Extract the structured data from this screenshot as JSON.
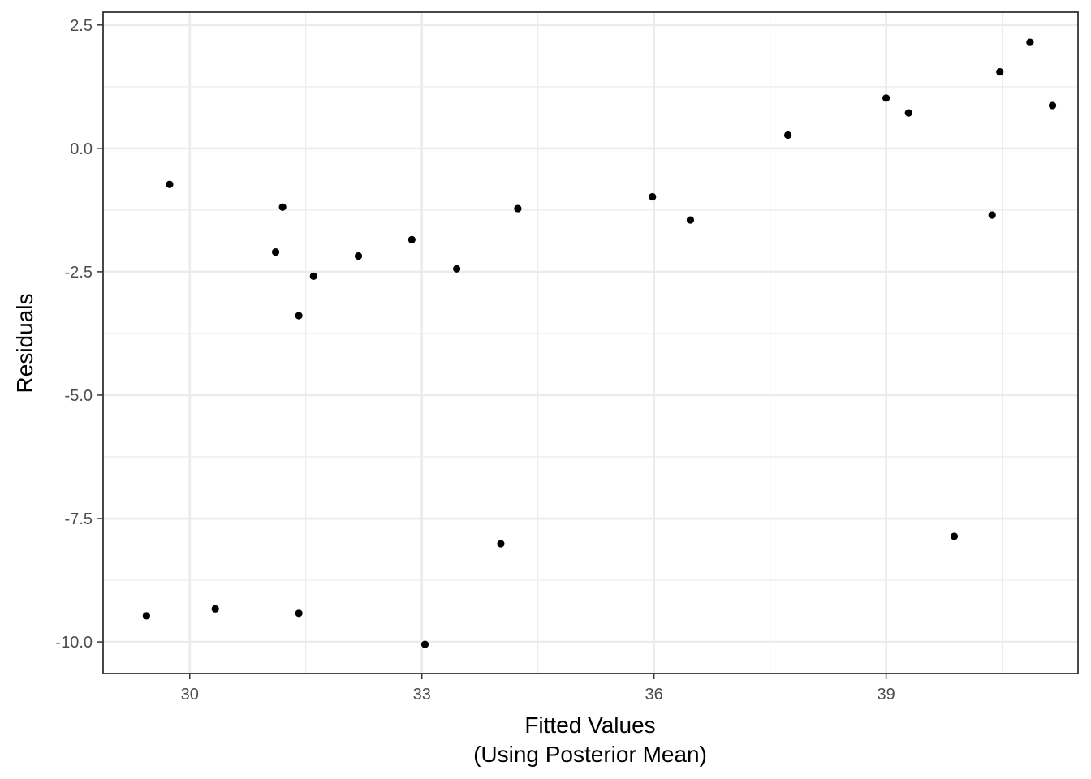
{
  "chart_data": {
    "type": "scatter",
    "xlabel_line1": "Fitted Values",
    "xlabel_line2": "(Using Posterior Mean)",
    "ylabel": "Residuals",
    "xlim": [
      28.88,
      41.48
    ],
    "ylim": [
      -10.64,
      2.76
    ],
    "x_major_ticks": [
      30,
      33,
      36,
      39
    ],
    "x_tick_labels": [
      "30",
      "33",
      "36",
      "39"
    ],
    "x_minor_ticks": [
      31.5,
      34.5,
      37.5,
      40.5
    ],
    "y_major_ticks": [
      -10,
      -7.5,
      -5,
      -2.5,
      0,
      2.5
    ],
    "y_tick_labels": [
      "-10.0",
      "-7.5",
      "-5.0",
      "-2.5",
      "0.0",
      "2.5"
    ],
    "y_minor_ticks": [
      -8.75,
      -6.25,
      -3.75,
      -1.25,
      1.25
    ],
    "grid": true,
    "point_color": "#000000",
    "points": [
      {
        "x": 29.44,
        "y": -9.47
      },
      {
        "x": 29.74,
        "y": -0.73
      },
      {
        "x": 30.33,
        "y": -9.33
      },
      {
        "x": 31.11,
        "y": -2.1
      },
      {
        "x": 31.2,
        "y": -1.19
      },
      {
        "x": 31.41,
        "y": -3.39
      },
      {
        "x": 31.41,
        "y": -9.42
      },
      {
        "x": 31.6,
        "y": -2.59
      },
      {
        "x": 32.18,
        "y": -2.18
      },
      {
        "x": 32.87,
        "y": -1.85
      },
      {
        "x": 33.04,
        "y": -10.05
      },
      {
        "x": 33.45,
        "y": -2.44
      },
      {
        "x": 34.02,
        "y": -8.01
      },
      {
        "x": 34.24,
        "y": -1.22
      },
      {
        "x": 35.98,
        "y": -0.98
      },
      {
        "x": 36.47,
        "y": -1.45
      },
      {
        "x": 37.73,
        "y": 0.27
      },
      {
        "x": 39.0,
        "y": 1.02
      },
      {
        "x": 39.29,
        "y": 0.72
      },
      {
        "x": 39.88,
        "y": -7.86
      },
      {
        "x": 40.37,
        "y": -1.35
      },
      {
        "x": 40.47,
        "y": 1.55
      },
      {
        "x": 40.86,
        "y": 2.15
      },
      {
        "x": 41.15,
        "y": 0.87
      }
    ]
  }
}
